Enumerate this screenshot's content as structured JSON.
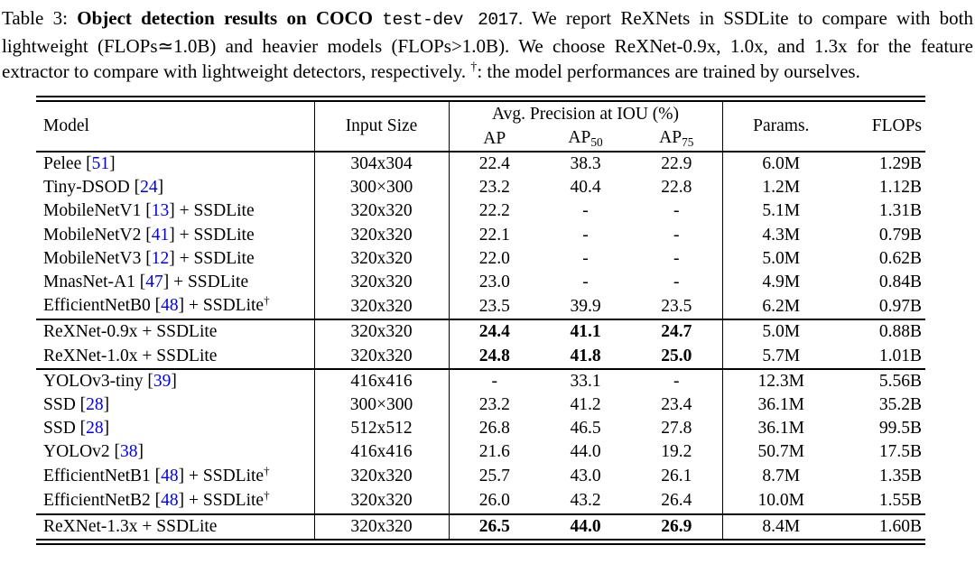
{
  "caption": {
    "prefix": "Table 3: ",
    "bold_text": "Object detection results on COCO ",
    "mono_text": "test-dev 2017",
    "body_text": ". We report ReXNets in SSDLite to compare with both lightweight (FLOPs≃1.0B) and heavier models (FLOPs>1.0B). We choose ReXNet-0.9x, 1.0x, and 1.3x for the feature extractor to compare with lightweight detectors, respectively. ",
    "dagger": "†",
    "suffix_text": ": the model performances are trained by ourselves."
  },
  "colors": {
    "citation_link": "#0000EE",
    "text": "#000000",
    "background": "#FFFFFF"
  },
  "table": {
    "header": {
      "model": "Model",
      "input_size": "Input Size",
      "ap_group": "Avg. Precision at IOU (%)",
      "ap": "AP",
      "ap50_base": "AP",
      "ap50_sub": "50",
      "ap75_base": "AP",
      "ap75_sub": "75",
      "params": "Params.",
      "flops": "FLOPs"
    },
    "groups": [
      {
        "rows": [
          {
            "model_pre": "Pelee ",
            "cite": "51",
            "model_post": "",
            "dagger": false,
            "input": "304x304",
            "ap": "22.4",
            "ap50": "38.3",
            "ap75": "22.9",
            "params": "6.0M",
            "flops": "1.29B",
            "bold": false
          },
          {
            "model_pre": "Tiny-DSOD ",
            "cite": "24",
            "model_post": "",
            "dagger": false,
            "input": "300×300",
            "ap": "23.2",
            "ap50": "40.4",
            "ap75": "22.8",
            "params": "1.2M",
            "flops": "1.12B",
            "bold": false
          },
          {
            "model_pre": "MobileNetV1 ",
            "cite": "13",
            "model_post": " + SSDLite",
            "dagger": false,
            "input": "320x320",
            "ap": "22.2",
            "ap50": "-",
            "ap75": "-",
            "params": "5.1M",
            "flops": "1.31B",
            "bold": false
          },
          {
            "model_pre": "MobileNetV2 ",
            "cite": "41",
            "model_post": " + SSDLite",
            "dagger": false,
            "input": "320x320",
            "ap": "22.1",
            "ap50": "-",
            "ap75": "-",
            "params": "4.3M",
            "flops": "0.79B",
            "bold": false
          },
          {
            "model_pre": "MobileNetV3 ",
            "cite": "12",
            "model_post": " + SSDLite",
            "dagger": false,
            "input": "320x320",
            "ap": "22.0",
            "ap50": "-",
            "ap75": "-",
            "params": "5.0M",
            "flops": "0.62B",
            "bold": false
          },
          {
            "model_pre": "MnasNet-A1 ",
            "cite": "47",
            "model_post": " + SSDLite",
            "dagger": false,
            "input": "320x320",
            "ap": "23.0",
            "ap50": "-",
            "ap75": "-",
            "params": "4.9M",
            "flops": "0.84B",
            "bold": false
          },
          {
            "model_pre": "EfficientNetB0 ",
            "cite": "48",
            "model_post": " + SSDLite",
            "dagger": true,
            "input": "320x320",
            "ap": "23.5",
            "ap50": "39.9",
            "ap75": "23.5",
            "params": "6.2M",
            "flops": "0.97B",
            "bold": false
          }
        ]
      },
      {
        "rows": [
          {
            "model_pre": "ReXNet-0.9x + SSDLite",
            "cite": null,
            "model_post": "",
            "dagger": false,
            "input": "320x320",
            "ap": "24.4",
            "ap50": "41.1",
            "ap75": "24.7",
            "params": "5.0M",
            "flops": "0.88B",
            "bold": true
          },
          {
            "model_pre": "ReXNet-1.0x + SSDLite",
            "cite": null,
            "model_post": "",
            "dagger": false,
            "input": "320x320",
            "ap": "24.8",
            "ap50": "41.8",
            "ap75": "25.0",
            "params": "5.7M",
            "flops": "1.01B",
            "bold": true
          }
        ]
      },
      {
        "rows": [
          {
            "model_pre": "YOLOv3-tiny ",
            "cite": "39",
            "model_post": "",
            "dagger": false,
            "input": "416x416",
            "ap": "-",
            "ap50": "33.1",
            "ap75": "-",
            "params": "12.3M",
            "flops": "5.56B",
            "bold": false
          },
          {
            "model_pre": "SSD ",
            "cite": "28",
            "model_post": "",
            "dagger": false,
            "input": "300×300",
            "ap": "23.2",
            "ap50": "41.2",
            "ap75": "23.4",
            "params": "36.1M",
            "flops": "35.2B",
            "bold": false
          },
          {
            "model_pre": "SSD ",
            "cite": "28",
            "model_post": "",
            "dagger": false,
            "input": "512x512",
            "ap": "26.8",
            "ap50": "46.5",
            "ap75": "27.8",
            "params": "36.1M",
            "flops": "99.5B",
            "bold": false
          },
          {
            "model_pre": "YOLOv2 ",
            "cite": "38",
            "model_post": "",
            "dagger": false,
            "input": "416x416",
            "ap": "21.6",
            "ap50": "44.0",
            "ap75": "19.2",
            "params": "50.7M",
            "flops": "17.5B",
            "bold": false
          },
          {
            "model_pre": "EfficientNetB1 ",
            "cite": "48",
            "model_post": " + SSDLite",
            "dagger": true,
            "input": "320x320",
            "ap": "25.7",
            "ap50": "43.0",
            "ap75": "26.1",
            "params": "8.7M",
            "flops": "1.35B",
            "bold": false
          },
          {
            "model_pre": "EfficientNetB2 ",
            "cite": "48",
            "model_post": " + SSDLite",
            "dagger": true,
            "input": "320x320",
            "ap": "26.0",
            "ap50": "43.2",
            "ap75": "26.4",
            "params": "10.0M",
            "flops": "1.55B",
            "bold": false
          }
        ]
      },
      {
        "rows": [
          {
            "model_pre": "ReXNet-1.3x + SSDLite",
            "cite": null,
            "model_post": "",
            "dagger": false,
            "input": "320x320",
            "ap": "26.5",
            "ap50": "44.0",
            "ap75": "26.9",
            "params": "8.4M",
            "flops": "1.60B",
            "bold": true
          }
        ]
      }
    ]
  }
}
